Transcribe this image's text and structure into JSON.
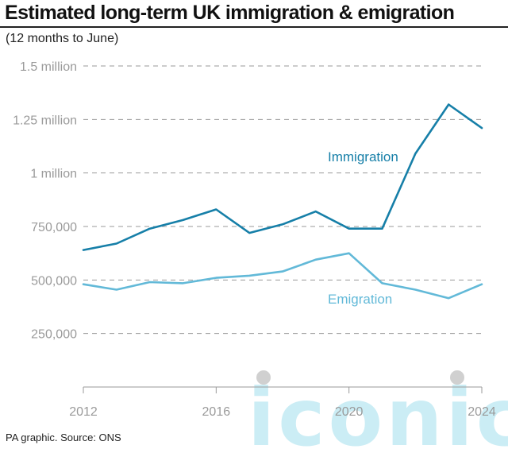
{
  "header": {
    "title": "Estimated long-term UK immigration & emigration",
    "subtitle": "(12 months to June)"
  },
  "footer": {
    "source": "PA graphic. Source: ONS"
  },
  "watermark": {
    "text": "iconic"
  },
  "colors": {
    "immigration": "#167fa8",
    "emigration": "#62b9d8",
    "grid": "#9a9a9a",
    "axis_text": "#9a9a9a"
  },
  "chart_data": {
    "type": "line",
    "title": "Estimated long-term UK immigration & emigration",
    "subtitle": "(12 months to June)",
    "xlabel": "",
    "ylabel": "",
    "x": [
      2012,
      2013,
      2014,
      2015,
      2016,
      2017,
      2018,
      2019,
      2020,
      2021,
      2022,
      2023,
      2024
    ],
    "xlim": [
      2012,
      2024
    ],
    "ylim": [
      0,
      1500000
    ],
    "xticks": [
      {
        "value": 2012,
        "label": "2012"
      },
      {
        "value": 2016,
        "label": "2016"
      },
      {
        "value": 2020,
        "label": "2020"
      },
      {
        "value": 2024,
        "label": "2024"
      }
    ],
    "yticks": [
      {
        "value": 250000,
        "label": "250,000"
      },
      {
        "value": 500000,
        "label": "500,000"
      },
      {
        "value": 750000,
        "label": "750,000"
      },
      {
        "value": 1000000,
        "label": "1 million"
      },
      {
        "value": 1250000,
        "label": "1.25 million"
      },
      {
        "value": 1500000,
        "label": "1.5 million"
      }
    ],
    "grid": "horizontal dashed",
    "series": [
      {
        "name": "Immigration",
        "color": "#167fa8",
        "values": [
          640000,
          670000,
          740000,
          780000,
          830000,
          720000,
          760000,
          820000,
          740000,
          740000,
          1090000,
          1320000,
          1210000
        ]
      },
      {
        "name": "Emigration",
        "color": "#62b9d8",
        "values": [
          480000,
          455000,
          490000,
          485000,
          510000,
          520000,
          540000,
          595000,
          625000,
          485000,
          455000,
          415000,
          480000
        ]
      }
    ]
  }
}
